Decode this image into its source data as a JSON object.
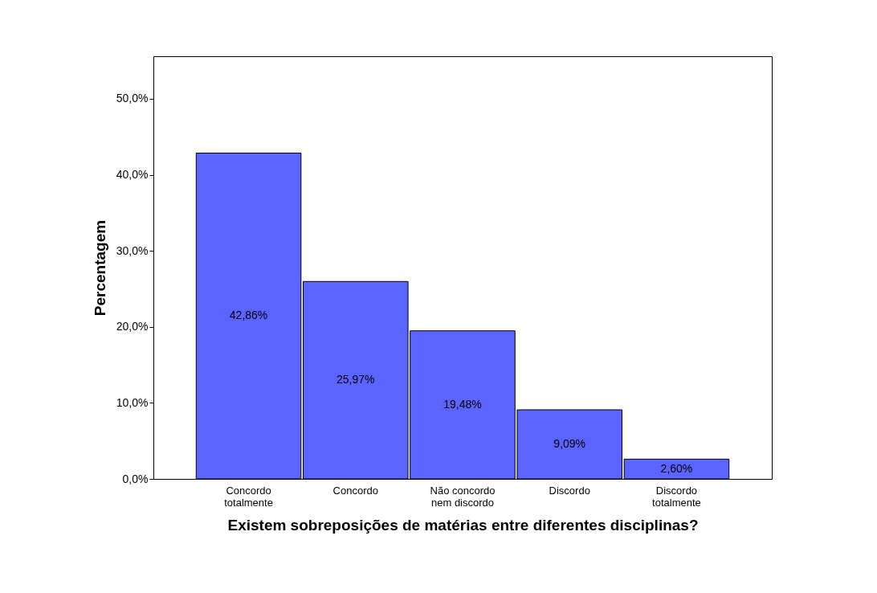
{
  "chart_data": {
    "type": "bar",
    "xlabel": "Existem sobreposições de matérias entre diferentes disciplinas?",
    "ylabel": "Percentagem",
    "categories": [
      "Concordo totalmente",
      "Concordo",
      "Não concordo nem discordo",
      "Discordo",
      "Discordo totalmente"
    ],
    "values": [
      42.86,
      25.97,
      19.48,
      9.09,
      2.6
    ],
    "value_labels": [
      "42,86%",
      "25,97%",
      "19,48%",
      "9,09%",
      "2,60%"
    ],
    "color": "#5b64fe",
    "ylim": [
      0,
      55.6
    ],
    "yticks": [
      {
        "value": 0,
        "label": "0,0%"
      },
      {
        "value": 10,
        "label": "10,0%"
      },
      {
        "value": 20,
        "label": "20,0%"
      },
      {
        "value": 30,
        "label": "30,0%"
      },
      {
        "value": 40,
        "label": "40,0%"
      },
      {
        "value": 50,
        "label": "50,0%"
      }
    ],
    "grid": false
  }
}
